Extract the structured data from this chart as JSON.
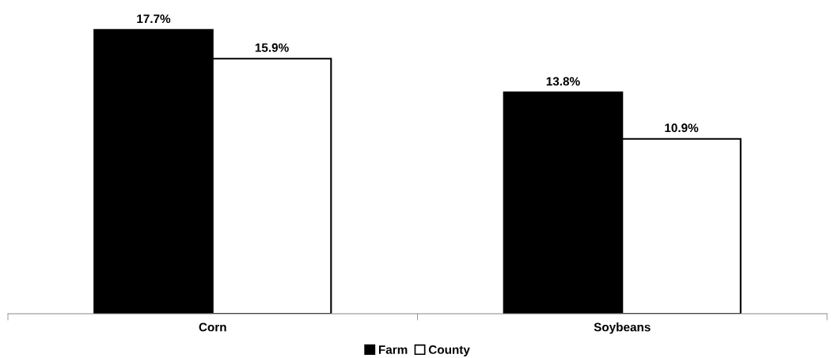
{
  "chart_data": {
    "type": "bar",
    "categories": [
      "Corn",
      "Soybeans"
    ],
    "series": [
      {
        "name": "Farm",
        "color": "#000000",
        "values": [
          17.7,
          13.8
        ],
        "value_labels": [
          "17.7%",
          "13.8%"
        ]
      },
      {
        "name": "County",
        "color": "#ffffff",
        "values": [
          15.9,
          10.9
        ],
        "value_labels": [
          "15.9%",
          "10.9%"
        ]
      }
    ],
    "legend": "bottom",
    "grid": false
  }
}
